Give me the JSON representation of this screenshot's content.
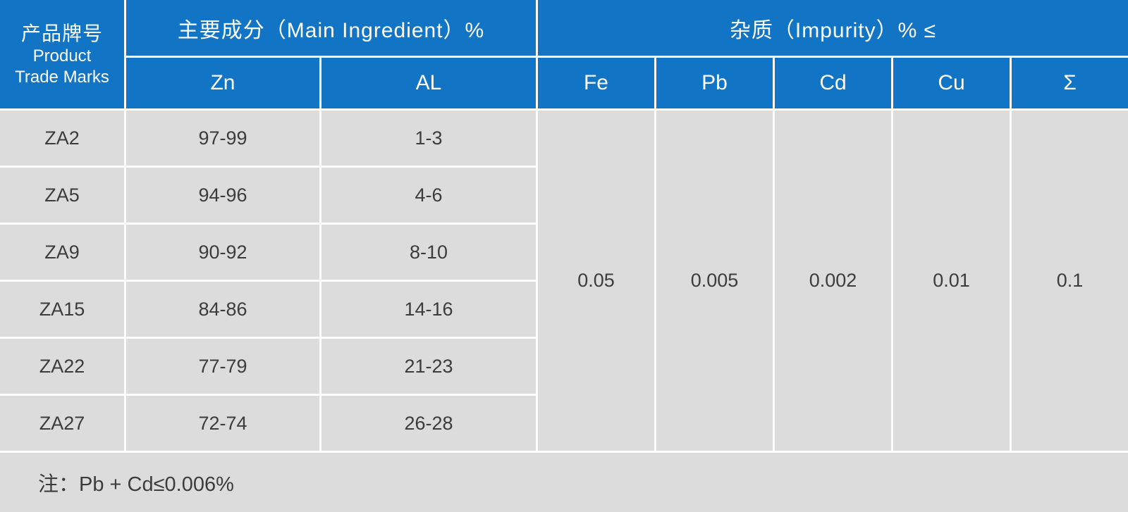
{
  "colors": {
    "header_blue": "#1274c4",
    "cell_gray": "#dcdcdc",
    "border_white": "#ffffff",
    "body_text": "#3c3c3c",
    "header_text": "#ffffff"
  },
  "table": {
    "header": {
      "product_col_zh": "产品牌号",
      "product_col_en1": "Product",
      "product_col_en2": "Trade Marks",
      "main_group": "主要成分（Main Ingredient）%",
      "impurity_group": "杂质（Impurity）% ≤",
      "col_zn": "Zn",
      "col_al": "AL",
      "col_fe": "Fe",
      "col_pb": "Pb",
      "col_cd": "Cd",
      "col_cu": "Cu",
      "col_sum": "Σ"
    },
    "rows": [
      {
        "mark": "ZA2",
        "zn": "97-99",
        "al": "1-3"
      },
      {
        "mark": "ZA5",
        "zn": "94-96",
        "al": "4-6"
      },
      {
        "mark": "ZA9",
        "zn": "90-92",
        "al": "8-10"
      },
      {
        "mark": "ZA15",
        "zn": "84-86",
        "al": "14-16"
      },
      {
        "mark": "ZA22",
        "zn": "77-79",
        "al": "21-23"
      },
      {
        "mark": "ZA27",
        "zn": "72-74",
        "al": "26-28"
      }
    ],
    "limits": {
      "fe": "0.05",
      "pb": "0.005",
      "cd": "0.002",
      "cu": "0.01",
      "sum": "0.1"
    },
    "note": "注：Pb + Cd≤0.006%"
  },
  "chart_data": {
    "type": "table",
    "title": "",
    "column_groups": [
      {
        "label": "产品牌号 Product Trade Marks",
        "span": 1
      },
      {
        "label": "主要成分（Main Ingredient）%",
        "span": 2
      },
      {
        "label": "杂质（Impurity）% ≤",
        "span": 5
      }
    ],
    "columns": [
      "产品牌号 Product Trade Marks",
      "Zn",
      "AL",
      "Fe",
      "Pb",
      "Cd",
      "Cu",
      "Σ"
    ],
    "rows": [
      [
        "ZA2",
        "97-99",
        "1-3"
      ],
      [
        "ZA5",
        "94-96",
        "4-6"
      ],
      [
        "ZA9",
        "90-92",
        "8-10"
      ],
      [
        "ZA15",
        "84-86",
        "14-16"
      ],
      [
        "ZA22",
        "77-79",
        "21-23"
      ],
      [
        "ZA27",
        "72-74",
        "26-28"
      ]
    ],
    "merged_impurity_limits": {
      "Fe": 0.05,
      "Pb": 0.005,
      "Cd": 0.002,
      "Cu": 0.01,
      "Σ": 0.1
    },
    "impurity_limits_note": "impurity values are maximums (≤) shared by all six alloy grades",
    "footnote": "注：Pb + Cd≤0.006%"
  }
}
